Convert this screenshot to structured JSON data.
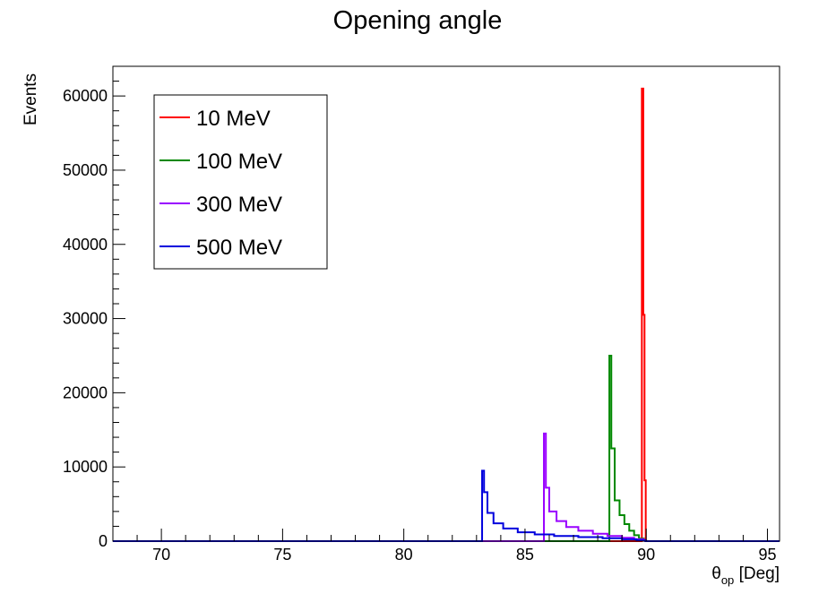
{
  "chart_data": {
    "type": "line",
    "title": "Opening angle",
    "xlabel_main": "θ",
    "xlabel_sub": "op",
    "xlabel_unit": " [Deg]",
    "ylabel": "Events",
    "xlim": [
      68,
      95.5
    ],
    "ylim": [
      0,
      64000
    ],
    "x_ticks": [
      70,
      75,
      80,
      85,
      90,
      95
    ],
    "x_tick_labels": [
      "70",
      "75",
      "80",
      "85",
      "90",
      "95"
    ],
    "y_ticks": [
      0,
      10000,
      20000,
      30000,
      40000,
      50000,
      60000
    ],
    "y_tick_labels": [
      "0",
      "10000",
      "20000",
      "30000",
      "40000",
      "50000",
      "60000"
    ],
    "grid": false,
    "legend_position": "top-left",
    "series": [
      {
        "name": "10 MeV",
        "color": "#ff0000",
        "points": [
          [
            68,
            0
          ],
          [
            89.75,
            0
          ],
          [
            89.82,
            61000
          ],
          [
            89.88,
            30500
          ],
          [
            89.93,
            8200
          ],
          [
            89.98,
            0
          ],
          [
            95.5,
            0
          ]
        ]
      },
      {
        "name": "100 MeV",
        "color": "#008800",
        "points": [
          [
            68,
            0
          ],
          [
            88.4,
            0
          ],
          [
            88.48,
            25000
          ],
          [
            88.56,
            12500
          ],
          [
            88.7,
            5500
          ],
          [
            88.9,
            3500
          ],
          [
            89.1,
            2300
          ],
          [
            89.3,
            1400
          ],
          [
            89.5,
            800
          ],
          [
            89.7,
            350
          ],
          [
            89.9,
            80
          ],
          [
            90.0,
            0
          ],
          [
            95.5,
            0
          ]
        ]
      },
      {
        "name": "300 MeV",
        "color": "#9900ff",
        "points": [
          [
            68,
            0
          ],
          [
            85.7,
            0
          ],
          [
            85.78,
            14500
          ],
          [
            85.86,
            7200
          ],
          [
            86.0,
            4000
          ],
          [
            86.3,
            2700
          ],
          [
            86.7,
            1900
          ],
          [
            87.2,
            1400
          ],
          [
            87.8,
            1000
          ],
          [
            88.4,
            700
          ],
          [
            89.0,
            450
          ],
          [
            89.5,
            250
          ],
          [
            89.9,
            60
          ],
          [
            90.0,
            0
          ],
          [
            95.5,
            0
          ]
        ]
      },
      {
        "name": "500 MeV",
        "color": "#0000dd",
        "points": [
          [
            68,
            0
          ],
          [
            83.15,
            0
          ],
          [
            83.23,
            9500
          ],
          [
            83.31,
            6600
          ],
          [
            83.45,
            3800
          ],
          [
            83.7,
            2400
          ],
          [
            84.1,
            1700
          ],
          [
            84.7,
            1200
          ],
          [
            85.4,
            900
          ],
          [
            86.2,
            700
          ],
          [
            87.2,
            550
          ],
          [
            88.2,
            400
          ],
          [
            89.0,
            250
          ],
          [
            89.6,
            130
          ],
          [
            89.95,
            20
          ],
          [
            90.0,
            0
          ],
          [
            95.5,
            0
          ]
        ]
      }
    ]
  }
}
